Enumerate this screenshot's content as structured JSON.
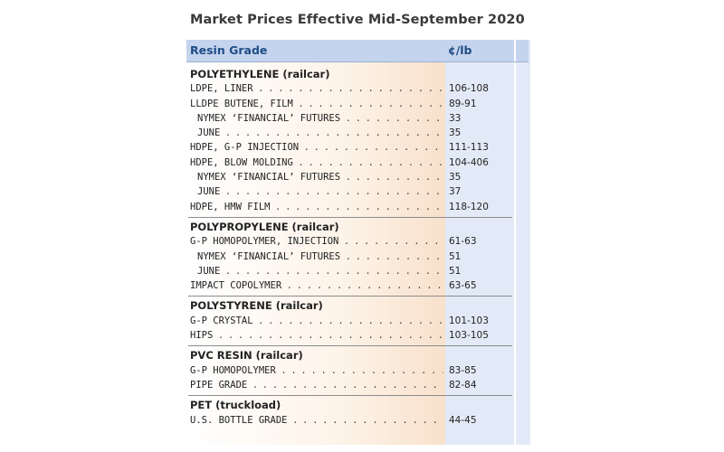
{
  "title": "Market Prices Effective Mid-September 2020",
  "header": {
    "resin_grade": "Resin Grade",
    "price_unit": "¢/lb"
  },
  "sections": [
    {
      "title": "POLYETHYLENE (railcar)",
      "rows": [
        {
          "name": "LDPE, LINER",
          "price": "106-108",
          "sub": false
        },
        {
          "name": "LLDPE BUTENE, FILM",
          "price": "89-91",
          "sub": false
        },
        {
          "name": "NYMEX ‘FINANCIAL’ FUTURES",
          "price": "33",
          "sub": true
        },
        {
          "name": "JUNE",
          "price": "35",
          "sub": true
        },
        {
          "name": "HDPE, G-P INJECTION",
          "price": "111-113",
          "sub": false
        },
        {
          "name": "HDPE, BLOW MOLDING",
          "price": "104-406",
          "sub": false
        },
        {
          "name": "NYMEX ‘FINANCIAL’ FUTURES",
          "price": "35",
          "sub": true
        },
        {
          "name": "JUNE",
          "price": "37",
          "sub": true
        },
        {
          "name": "HDPE, HMW FILM",
          "price": "118-120",
          "sub": false
        }
      ]
    },
    {
      "title": "POLYPROPYLENE (railcar)",
      "rows": [
        {
          "name": "G-P HOMOPOLYMER, INJECTION",
          "price": "61-63",
          "sub": false
        },
        {
          "name": "NYMEX ‘FINANCIAL’ FUTURES",
          "price": "51",
          "sub": true
        },
        {
          "name": "JUNE",
          "price": "51",
          "sub": true
        },
        {
          "name": "IMPACT COPOLYMER",
          "price": "63-65",
          "sub": false
        }
      ]
    },
    {
      "title": "POLYSTYRENE (railcar)",
      "rows": [
        {
          "name": "G-P CRYSTAL",
          "price": "101-103",
          "sub": false
        },
        {
          "name": "HIPS",
          "price": "103-105",
          "sub": false
        }
      ]
    },
    {
      "title": "PVC RESIN (railcar)",
      "rows": [
        {
          "name": "G-P HOMOPOLYMER",
          "price": "83-85",
          "sub": false
        },
        {
          "name": "PIPE GRADE",
          "price": "82-84",
          "sub": false
        }
      ]
    },
    {
      "title": "PET (truckload)",
      "rows": [
        {
          "name": "U.S. BOTTLE GRADE",
          "price": "44-45",
          "sub": false
        }
      ]
    }
  ]
}
